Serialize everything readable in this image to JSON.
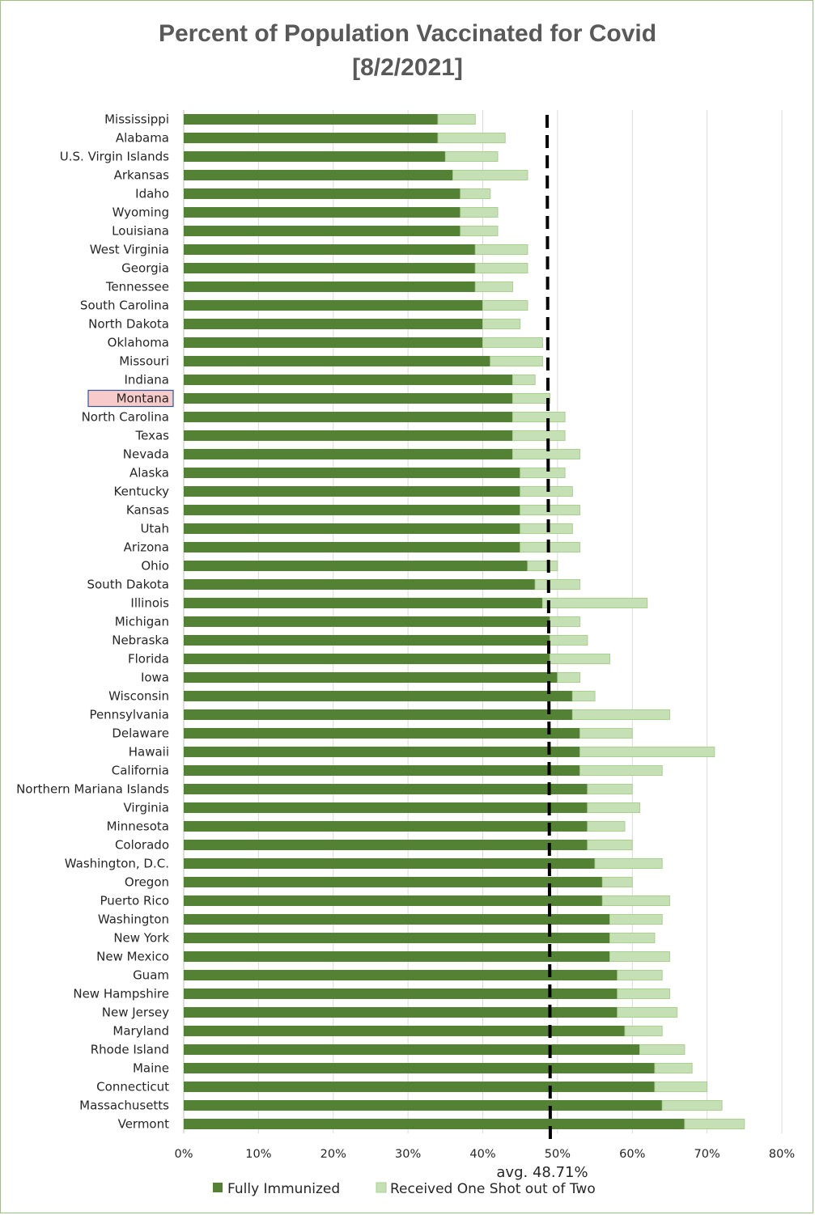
{
  "chart_data": {
    "type": "bar",
    "orientation": "horizontal",
    "stacked": true,
    "title": "Percent of Population Vaccinated for Covid",
    "subtitle": "[8/2/2021]",
    "categories": [
      "Mississippi",
      "Alabama",
      "U.S. Virgin Islands",
      "Arkansas",
      "Idaho",
      "Wyoming",
      "Louisiana",
      "West Virginia",
      "Georgia",
      "Tennessee",
      "South Carolina",
      "North Dakota",
      "Oklahoma",
      "Missouri",
      "Indiana",
      "Montana",
      "North Carolina",
      "Texas",
      "Nevada",
      "Alaska",
      "Kentucky",
      "Kansas",
      "Utah",
      "Arizona",
      "Ohio",
      "South Dakota",
      "Illinois",
      "Michigan",
      "Nebraska",
      "Florida",
      "Iowa",
      "Wisconsin",
      "Pennsylvania",
      "Delaware",
      "Hawaii",
      "California",
      "Northern Mariana Islands",
      "Virginia",
      "Minnesota",
      "Colorado",
      "Washington, D.C.",
      "Oregon",
      "Puerto Rico",
      "Washington",
      "New York",
      "New Mexico",
      "Guam",
      "New Hampshire",
      "New Jersey",
      "Maryland",
      "Rhode Island",
      "Maine",
      "Connecticut",
      "Massachusetts",
      "Vermont"
    ],
    "series": [
      {
        "name": "Fully Immunized",
        "color": "#548235",
        "values": [
          34,
          34,
          35,
          36,
          37,
          37,
          37,
          39,
          39,
          39,
          40,
          40,
          40,
          41,
          44,
          44,
          44,
          44,
          44,
          45,
          45,
          45,
          45,
          45,
          46,
          47,
          48,
          49,
          49,
          49,
          50,
          52,
          52,
          53,
          53,
          53,
          54,
          54,
          54,
          54,
          55,
          56,
          56,
          57,
          57,
          57,
          58,
          58,
          58,
          59,
          61,
          63,
          63,
          64,
          67
        ]
      },
      {
        "name": "Received One Shot out of Two",
        "color": "#c5e0b4",
        "values": [
          5,
          9,
          7,
          10,
          4,
          5,
          5,
          7,
          7,
          5,
          6,
          5,
          8,
          7,
          3,
          5,
          7,
          7,
          9,
          6,
          7,
          8,
          7,
          8,
          4,
          6,
          14,
          4,
          5,
          8,
          3,
          3,
          13,
          7,
          18,
          11,
          6,
          7,
          5,
          6,
          9,
          4,
          9,
          7,
          6,
          8,
          6,
          7,
          8,
          5,
          6,
          5,
          7,
          8,
          8
        ]
      }
    ],
    "xlim": [
      0,
      80
    ],
    "x_ticks": [
      "0%",
      "10%",
      "20%",
      "30%",
      "40%",
      "50%",
      "60%",
      "70%",
      "80%"
    ],
    "average": {
      "value": 48.71,
      "label": "avg. 48.71%",
      "style": "dashed black line"
    },
    "highlighted_category": "Montana",
    "grid": "vertical",
    "legend_position": "bottom"
  }
}
